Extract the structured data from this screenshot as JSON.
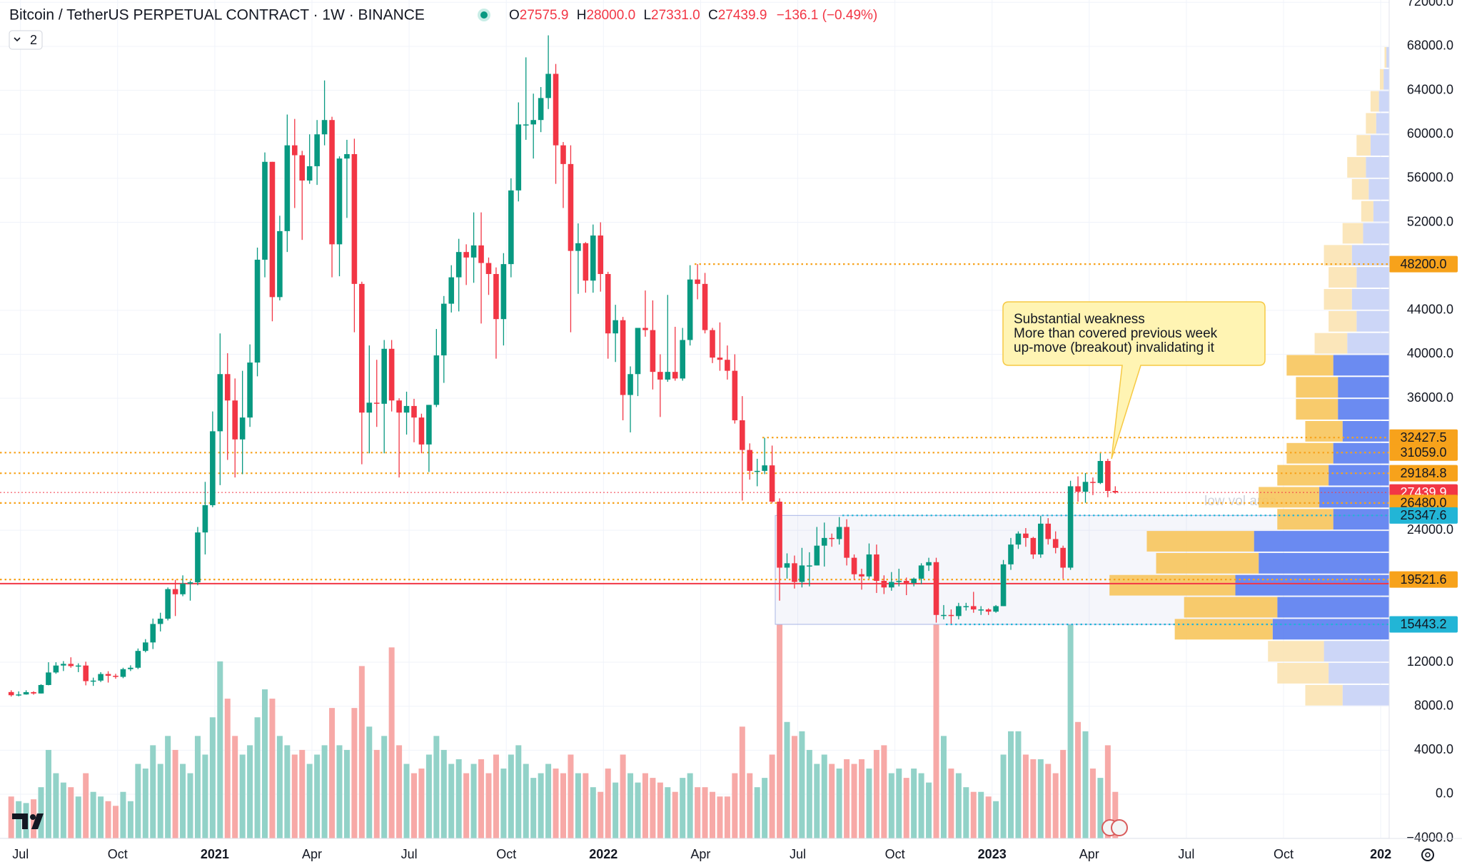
{
  "header": {
    "title": "Bitcoin / TetherUS PERPETUAL CONTRACT · 1W · BINANCE",
    "ohlc_keys": [
      "O",
      "H",
      "L",
      "C"
    ],
    "ohlc_labels": [
      "27575.9",
      "28000.0",
      "27331.0",
      "27439.9"
    ],
    "change_label": "−136.1 (−0.49%)",
    "badge": "2"
  },
  "chart_data": {
    "type": "candlestick",
    "up_color": "#089981",
    "down_color": "#f23645",
    "volume_up_color": "#92d2c8",
    "volume_down_color": "#f7a9a7",
    "ylim": [
      -4023,
      72214
    ],
    "yticks": [
      {
        "value": 72000,
        "label": "72000.0"
      },
      {
        "value": 68000,
        "label": "68000.0"
      },
      {
        "value": 64000,
        "label": "64000.0"
      },
      {
        "value": 60000,
        "label": "60000.0"
      },
      {
        "value": 56000,
        "label": "56000.0"
      },
      {
        "value": 52000,
        "label": "52000.0"
      },
      {
        "value": 44000,
        "label": "44000.0"
      },
      {
        "value": 40000,
        "label": "40000.0"
      },
      {
        "value": 36000,
        "label": "36000.0"
      },
      {
        "value": 24000,
        "label": "24000.0"
      },
      {
        "value": 12000,
        "label": "12000.0"
      },
      {
        "value": 8000,
        "label": "8000.0"
      },
      {
        "value": 4000,
        "label": "4000.0"
      },
      {
        "value": 0,
        "label": "0.0"
      },
      {
        "value": -4000,
        "label": "−4000.0"
      }
    ],
    "xtick_labels": [
      "Jul",
      "Oct",
      "2021",
      "Apr",
      "Jul",
      "Oct",
      "2022",
      "Apr",
      "Jul",
      "Oct",
      "2023",
      "Apr",
      "Jul",
      "Oct",
      "202"
    ],
    "candles": [
      [
        9290,
        9450,
        8880,
        9000
      ],
      [
        9000,
        9350,
        8900,
        9070
      ],
      [
        9070,
        9450,
        9050,
        9280
      ],
      [
        9280,
        9360,
        9050,
        9160
      ],
      [
        9160,
        10000,
        9150,
        9930
      ],
      [
        9930,
        12000,
        9900,
        11070
      ],
      [
        11070,
        12000,
        10950,
        11700
      ],
      [
        11700,
        12100,
        11200,
        11850
      ],
      [
        11850,
        12450,
        11500,
        11650
      ],
      [
        11650,
        11900,
        11100,
        11700
      ],
      [
        11700,
        12050,
        9900,
        10280
      ],
      [
        10280,
        10600,
        9850,
        10330
      ],
      [
        10330,
        11100,
        10200,
        10930
      ],
      [
        10930,
        11180,
        10150,
        10770
      ],
      [
        10770,
        10950,
        10500,
        10670
      ],
      [
        10670,
        11500,
        10550,
        11370
      ],
      [
        11370,
        11720,
        11200,
        11500
      ],
      [
        11500,
        13250,
        11380,
        13030
      ],
      [
        13030,
        14100,
        12900,
        13800
      ],
      [
        13800,
        15970,
        13200,
        15480
      ],
      [
        15480,
        16500,
        14800,
        15960
      ],
      [
        15960,
        18800,
        15800,
        18650
      ],
      [
        18650,
        19500,
        16200,
        18180
      ],
      [
        18180,
        19900,
        18000,
        19150
      ],
      [
        19150,
        19420,
        17600,
        19270
      ],
      [
        19270,
        24300,
        19000,
        23800
      ],
      [
        23800,
        28400,
        21800,
        26280
      ],
      [
        26280,
        34800,
        26100,
        33000
      ],
      [
        33000,
        41900,
        28100,
        38200
      ],
      [
        38200,
        40100,
        30400,
        35800
      ],
      [
        35800,
        37800,
        28800,
        32260
      ],
      [
        32260,
        38500,
        29100,
        34250
      ],
      [
        34250,
        40900,
        33400,
        39250
      ],
      [
        39250,
        49700,
        38000,
        48600
      ],
      [
        48600,
        58350,
        47000,
        57500
      ],
      [
        57500,
        57500,
        43000,
        45200
      ],
      [
        45200,
        52600,
        44900,
        51200
      ],
      [
        51200,
        61800,
        49300,
        59000
      ],
      [
        59000,
        61400,
        53300,
        58100
      ],
      [
        58100,
        58500,
        50400,
        55800
      ],
      [
        55800,
        60000,
        55500,
        57100
      ],
      [
        57100,
        61300,
        55400,
        60000
      ],
      [
        60000,
        64900,
        59000,
        61300
      ],
      [
        61300,
        61600,
        47000,
        50000
      ],
      [
        50000,
        58000,
        47100,
        57800
      ],
      [
        57800,
        59500,
        52400,
        58200
      ],
      [
        58200,
        59600,
        42000,
        46400
      ],
      [
        46400,
        46600,
        30000,
        34700
      ],
      [
        34700,
        40800,
        31000,
        35600
      ],
      [
        35600,
        39500,
        33400,
        35500
      ],
      [
        35500,
        41300,
        31000,
        40500
      ],
      [
        40500,
        41300,
        34800,
        35800
      ],
      [
        35800,
        36000,
        28800,
        34700
      ],
      [
        34700,
        36600,
        32700,
        35300
      ],
      [
        35300,
        35950,
        32000,
        34250
      ],
      [
        34250,
        34600,
        31000,
        31800
      ],
      [
        31800,
        35400,
        29300,
        35400
      ],
      [
        35400,
        42300,
        35200,
        39900
      ],
      [
        39900,
        45300,
        37400,
        44600
      ],
      [
        44600,
        48100,
        43800,
        47000
      ],
      [
        47000,
        50500,
        43900,
        49300
      ],
      [
        49300,
        50000,
        46300,
        48800
      ],
      [
        48800,
        52900,
        46500,
        49900
      ],
      [
        49900,
        52900,
        42800,
        48300
      ],
      [
        48300,
        48800,
        45400,
        47300
      ],
      [
        47300,
        47900,
        39600,
        43200
      ],
      [
        43200,
        49200,
        40800,
        48200
      ],
      [
        48200,
        56000,
        47000,
        54900
      ],
      [
        54900,
        62900,
        53900,
        60900
      ],
      [
        60900,
        67000,
        59500,
        60900
      ],
      [
        60900,
        63700,
        57800,
        61300
      ],
      [
        61300,
        64300,
        60200,
        63300
      ],
      [
        63300,
        69000,
        62300,
        65500
      ],
      [
        65500,
        66400,
        55500,
        59000
      ],
      [
        59000,
        59300,
        53300,
        57300
      ],
      [
        57300,
        59000,
        42000,
        49400
      ],
      [
        49400,
        51900,
        45500,
        50100
      ],
      [
        50100,
        50200,
        45600,
        46700
      ],
      [
        46700,
        51800,
        45600,
        50800
      ],
      [
        50800,
        52000,
        45700,
        47300
      ],
      [
        47300,
        47500,
        39600,
        41900
      ],
      [
        41900,
        44500,
        39300,
        43100
      ],
      [
        43100,
        43400,
        34000,
        36300
      ],
      [
        36300,
        38900,
        32900,
        38200
      ],
      [
        38200,
        42000,
        36200,
        42400
      ],
      [
        42400,
        45800,
        41600,
        42200
      ],
      [
        42200,
        44900,
        36800,
        38400
      ],
      [
        38400,
        40000,
        34300,
        37700
      ],
      [
        37700,
        45400,
        37500,
        38400
      ],
      [
        38400,
        42500,
        37600,
        37800
      ],
      [
        37800,
        42400,
        37600,
        41300
      ],
      [
        41300,
        48100,
        40800,
        46800
      ],
      [
        46800,
        48200,
        45000,
        46400
      ],
      [
        46400,
        47400,
        41900,
        42200
      ],
      [
        42200,
        42400,
        39200,
        39700
      ],
      [
        39700,
        42900,
        38500,
        39500
      ],
      [
        39500,
        40800,
        37700,
        38500
      ],
      [
        38500,
        40000,
        33700,
        34000
      ],
      [
        34000,
        36200,
        26700,
        31300
      ],
      [
        31300,
        31900,
        28600,
        29400
      ],
      [
        29400,
        30500,
        28000,
        29400
      ],
      [
        29400,
        32400,
        29100,
        29900
      ],
      [
        29900,
        31700,
        26500,
        26600
      ],
      [
        26600,
        26900,
        17600,
        20600
      ],
      [
        20600,
        21900,
        19600,
        21000
      ],
      [
        21000,
        21700,
        18700,
        19300
      ],
      [
        19300,
        22400,
        18800,
        20800
      ],
      [
        20800,
        22000,
        18900,
        20800
      ],
      [
        20800,
        24300,
        20800,
        22600
      ],
      [
        22600,
        24700,
        20700,
        23300
      ],
      [
        23300,
        23700,
        22500,
        23200
      ],
      [
        23200,
        25200,
        22700,
        24300
      ],
      [
        24300,
        25000,
        20800,
        21500
      ],
      [
        21500,
        21800,
        19500,
        20000
      ],
      [
        20000,
        20500,
        18600,
        19800
      ],
      [
        19800,
        22800,
        19600,
        21800
      ],
      [
        21800,
        22700,
        18300,
        19400
      ],
      [
        19400,
        19900,
        18200,
        18800
      ],
      [
        18800,
        20200,
        18500,
        19300
      ],
      [
        19300,
        20500,
        18900,
        19400
      ],
      [
        19400,
        19700,
        18100,
        19200
      ],
      [
        19200,
        19700,
        18900,
        19600
      ],
      [
        19600,
        21000,
        19100,
        20800
      ],
      [
        20800,
        21500,
        20300,
        21100
      ],
      [
        21100,
        21500,
        15600,
        16300
      ],
      [
        16300,
        17200,
        15900,
        16300
      ],
      [
        16300,
        16800,
        15500,
        16200
      ],
      [
        16200,
        17400,
        15900,
        17100
      ],
      [
        17100,
        17400,
        16700,
        17100
      ],
      [
        17100,
        18400,
        16500,
        16800
      ],
      [
        16800,
        17100,
        16300,
        16800
      ],
      [
        16800,
        16900,
        16300,
        16600
      ],
      [
        16600,
        17200,
        16500,
        17100
      ],
      [
        17100,
        21300,
        17100,
        20900
      ],
      [
        20900,
        23300,
        20400,
        22700
      ],
      [
        22700,
        23900,
        22300,
        23700
      ],
      [
        23700,
        24200,
        22500,
        23300
      ],
      [
        23300,
        23400,
        21400,
        21800
      ],
      [
        21800,
        25300,
        21500,
        24600
      ],
      [
        24600,
        25100,
        22700,
        23200
      ],
      [
        23200,
        23900,
        21900,
        22400
      ],
      [
        22400,
        22600,
        19600,
        20600
      ],
      [
        20600,
        28500,
        20400,
        28000
      ],
      [
        28000,
        28900,
        26600,
        27500
      ],
      [
        27500,
        29200,
        26500,
        28400
      ],
      [
        28400,
        28800,
        27200,
        28300
      ],
      [
        28300,
        31000,
        28200,
        30300
      ],
      [
        30300,
        30500,
        27000,
        27575.9
      ],
      [
        27575.9,
        28000,
        27331,
        27439.9
      ]
    ],
    "volume": [
      45,
      40,
      38,
      42,
      55,
      95,
      70,
      60,
      55,
      45,
      70,
      50,
      45,
      40,
      35,
      50,
      40,
      80,
      75,
      100,
      80,
      110,
      95,
      80,
      70,
      110,
      90,
      130,
      190,
      150,
      110,
      90,
      100,
      130,
      160,
      150,
      110,
      100,
      90,
      95,
      80,
      90,
      100,
      140,
      100,
      95,
      140,
      185,
      120,
      95,
      110,
      205,
      100,
      80,
      70,
      75,
      90,
      110,
      95,
      80,
      85,
      70,
      80,
      85,
      70,
      90,
      75,
      90,
      100,
      80,
      65,
      70,
      80,
      75,
      70,
      90,
      70,
      70,
      55,
      50,
      75,
      60,
      90,
      70,
      60,
      70,
      65,
      60,
      55,
      50,
      65,
      70,
      55,
      55,
      50,
      45,
      45,
      70,
      120,
      70,
      55,
      65,
      90,
      230,
      125,
      110,
      115,
      95,
      80,
      90,
      80,
      75,
      85,
      80,
      85,
      75,
      95,
      100,
      70,
      75,
      65,
      75,
      70,
      60,
      230,
      110,
      75,
      70,
      55,
      50,
      50,
      45,
      40,
      90,
      115,
      115,
      90,
      85,
      85,
      80,
      70,
      95,
      230,
      125,
      115,
      75,
      65,
      100,
      50
    ],
    "volume_profile": {
      "bins": [
        8000,
        10000,
        12000,
        14000,
        16000,
        18000,
        20000,
        22000,
        24000,
        26000,
        28000,
        30000,
        32000,
        34000,
        36000,
        38000,
        40000,
        42000,
        44000,
        46000,
        48000,
        50000,
        52000,
        54000,
        56000,
        58000,
        60000,
        62000,
        64000,
        66000,
        68000
      ],
      "up": [
        50,
        65,
        70,
        125,
        120,
        165,
        140,
        145,
        60,
        75,
        65,
        60,
        50,
        55,
        55,
        60,
        45,
        35,
        40,
        35,
        40,
        28,
        17,
        22,
        25,
        20,
        14,
        11,
        6,
        3
      ],
      "down": [
        40,
        55,
        60,
        105,
        100,
        135,
        110,
        115,
        60,
        65,
        55,
        50,
        40,
        45,
        45,
        50,
        35,
        30,
        30,
        30,
        30,
        22,
        13,
        18,
        20,
        15,
        11,
        9,
        4,
        2
      ],
      "value_area": [
        14000,
        40000
      ],
      "up_color": "#5b7ef0",
      "down_color": "#f7c55c",
      "up_color_outside": "#c7d2f6",
      "down_color_outside": "#fbe3b3"
    },
    "levels": [
      {
        "value": 48200,
        "label": "48200.0",
        "color": "#f7a21b",
        "text_color": "#131722"
      },
      {
        "value": 32427.5,
        "label": "32427.5",
        "color": "#f7a21b",
        "text_color": "#131722"
      },
      {
        "value": 31059,
        "label": "31059.0",
        "color": "#f7a21b",
        "text_color": "#131722"
      },
      {
        "value": 29184.8,
        "label": "29184.8",
        "color": "#f7a21b",
        "text_color": "#131722"
      },
      {
        "value": 27439.9,
        "label": "27439.9",
        "color": "#f23645",
        "text_color": "#ffffff"
      },
      {
        "value": 26480,
        "label": "26480.0",
        "color": "#f7a21b",
        "text_color": "#131722"
      },
      {
        "value": 25347.6,
        "label": "25347.6",
        "color": "#22b5d6",
        "text_color": "#131722"
      },
      {
        "value": 19521.6,
        "label": "19521.6",
        "color": "#f7a21b",
        "text_color": "#131722"
      },
      {
        "value": 15443.2,
        "label": "15443.2",
        "color": "#22b5d6",
        "text_color": "#131722"
      }
    ],
    "red_line": {
      "value": 19150,
      "color": "#f23645"
    },
    "range_box": {
      "top": 25347.6,
      "bottom": 15443.2
    },
    "box_label": "low vol area",
    "annotation": [
      "Substantial weakness",
      "More than covered previous week",
      "up-move (breakout) invalidating it"
    ]
  }
}
